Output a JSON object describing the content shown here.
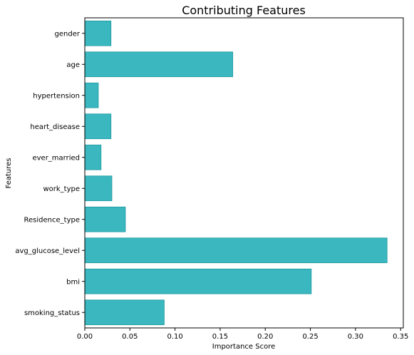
{
  "chart_data": {
    "type": "bar",
    "orientation": "horizontal",
    "title": "Contributing Features",
    "xlabel": "Importance Score",
    "ylabel": "Features",
    "categories": [
      "gender",
      "age",
      "hypertension",
      "heart_disease",
      "ever_married",
      "work_type",
      "Residence_type",
      "avg_glucose_level",
      "bmi",
      "smoking_status"
    ],
    "values": [
      0.029,
      0.164,
      0.015,
      0.029,
      0.018,
      0.03,
      0.045,
      0.335,
      0.251,
      0.088
    ],
    "xlim": [
      0,
      0.353
    ],
    "xticks": [
      0.0,
      0.05,
      0.1,
      0.15,
      0.2,
      0.25,
      0.3,
      0.35
    ],
    "xtick_labels": [
      "0.00",
      "0.05",
      "0.10",
      "0.15",
      "0.20",
      "0.25",
      "0.30",
      "0.35"
    ],
    "grid": false,
    "colors": {
      "bar_fill": "#3bb8bf",
      "bar_edge": "#1a969e",
      "axis": "#000000"
    }
  }
}
